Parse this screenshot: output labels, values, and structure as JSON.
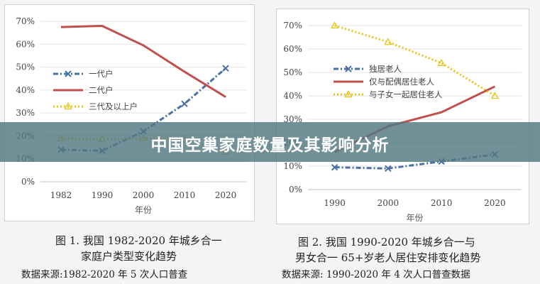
{
  "banner": {
    "title": "中国空巢家庭数量及其影响分析"
  },
  "chart_data": [
    {
      "type": "line",
      "xlabel": "年份",
      "x": [
        "1982",
        "1990",
        "2000",
        "2010",
        "2020"
      ],
      "yticks": [
        "0%",
        "10%",
        "20%",
        "30%",
        "40%",
        "50%",
        "60%",
        "70%"
      ],
      "ylim": [
        0,
        70
      ],
      "legend_position": "left-center",
      "series": [
        {
          "name": "一代户",
          "values": [
            14,
            13.5,
            22,
            34,
            49.5
          ],
          "color": "#4a6fa5",
          "style": "dash-dot"
        },
        {
          "name": "二代户",
          "values": [
            67.5,
            68,
            59.5,
            48,
            37
          ],
          "color": "#c0504d",
          "style": "solid"
        },
        {
          "name": "三代及以上户",
          "values": [
            19,
            18.5,
            19,
            18.5,
            13
          ],
          "color": "#e6c619",
          "style": "dotted"
        }
      ],
      "caption": [
        "图 1. 我国 1982-2020 年城乡合一",
        "家庭户类型变化趋势"
      ],
      "source": "数据来源:1982-2020 年 5 次人口普查"
    },
    {
      "type": "line",
      "xlabel": "年份",
      "x": [
        "1990",
        "2000",
        "2010",
        "2020"
      ],
      "yticks": [
        "0%",
        "10%",
        "20%",
        "30%",
        "40%",
        "50%",
        "60%",
        "70%"
      ],
      "ylim": [
        0,
        70
      ],
      "legend_position": "top-left",
      "series": [
        {
          "name": "独居老人",
          "values": [
            9.5,
            9,
            12,
            15
          ],
          "color": "#4a6fa5",
          "style": "dash-dot"
        },
        {
          "name": "仅与配偶居住老人",
          "values": [
            16,
            27,
            33,
            44
          ],
          "color": "#c0504d",
          "style": "solid"
        },
        {
          "name": "与子女一起居住老人",
          "values": [
            70,
            63,
            54,
            40
          ],
          "color": "#e6c619",
          "style": "dotted"
        }
      ],
      "caption": [
        "图 2.  我国 1990-2020 年城乡合一与",
        "男女合一 65+岁老人居住安排变化趋势"
      ],
      "source": "数据来源: 1990-2020 年 4 次人口普查数据"
    }
  ]
}
